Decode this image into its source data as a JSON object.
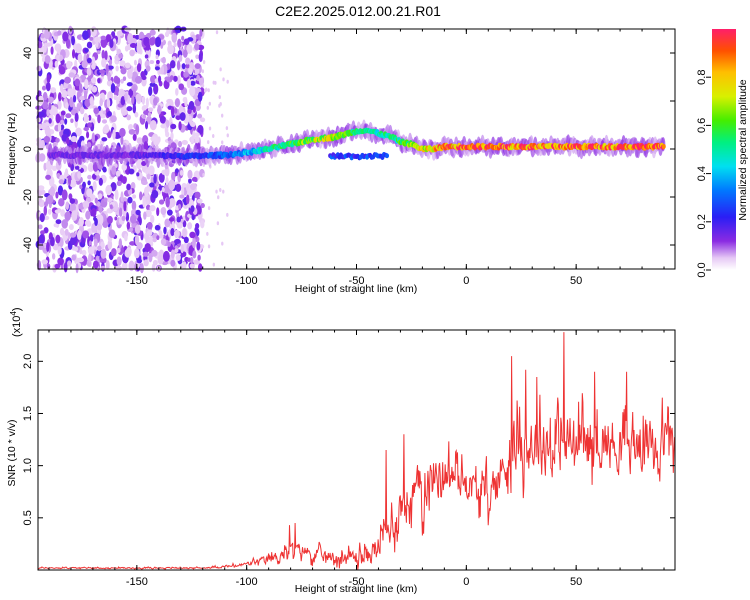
{
  "title": "C2E2.2025.012.00.21.R01",
  "chart_data": [
    {
      "type": "heatmap",
      "xlabel": "Height of straight line (km)",
      "ylabel": "Frequency (Hz)",
      "xlim": [
        -195,
        95
      ],
      "ylim": [
        -50,
        50
      ],
      "xticks": [
        -150,
        -100,
        -50,
        0,
        50
      ],
      "yticks": [
        -40,
        -20,
        0,
        20,
        40
      ],
      "colorbar": {
        "label": "Normalized spectral amplitude",
        "range": [
          0.0,
          1.0
        ],
        "ticks": [
          "0.0",
          "0.2",
          "0.4",
          "0.6",
          "0.8"
        ],
        "colormap": "rainbow (white→purple→blue→cyan→green→yellow→orange→red)"
      },
      "ridge": {
        "x": [
          -190,
          -150,
          -125,
          -110,
          -100,
          -90,
          -80,
          -70,
          -60,
          -52,
          -46,
          -42,
          -38,
          -34,
          -30,
          -25,
          -20,
          -15,
          -10,
          0,
          20,
          50,
          90
        ],
        "y": [
          -2.5,
          -2.5,
          -3,
          -2.5,
          -1.5,
          0,
          2,
          4,
          5,
          7,
          8,
          7,
          6,
          5,
          3,
          2,
          0,
          0,
          1,
          1,
          1,
          1,
          1
        ],
        "amplitude": [
          0.15,
          0.15,
          0.25,
          0.3,
          0.4,
          0.5,
          0.6,
          0.7,
          0.75,
          0.55,
          0.5,
          0.5,
          0.55,
          0.5,
          0.6,
          0.7,
          0.75,
          0.8,
          0.9,
          0.95,
          0.95,
          0.95,
          0.95
        ]
      },
      "noise_region_x": [
        -195,
        -120
      ],
      "secondary_feature": {
        "x": [
          -62,
          -36
        ],
        "y": [
          -3,
          -3
        ],
        "amplitude": 0.25
      }
    },
    {
      "type": "line",
      "xlabel": "Height of straight line (km)",
      "ylabel": "SNR (10 * v/v)",
      "y_multiplier": "(x10^4)",
      "xlim": [
        -195,
        95
      ],
      "ylim": [
        0,
        2.3
      ],
      "xticks": [
        -150,
        -100,
        -50,
        0,
        50
      ],
      "yticks": [
        "0.5",
        "1.0",
        "1.5",
        "2.0"
      ],
      "color": "#ee3333",
      "envelope": {
        "x": [
          -195,
          -120,
          -105,
          -100,
          -90,
          -80,
          -75,
          -70,
          -60,
          -55,
          -50,
          -45,
          -40,
          -35,
          -30,
          -25,
          -20,
          -15,
          -10,
          -5,
          0,
          5,
          10,
          15,
          20,
          25,
          30,
          40,
          50,
          60,
          70,
          80,
          90,
          95
        ],
        "y": [
          0.02,
          0.02,
          0.04,
          0.06,
          0.1,
          0.18,
          0.2,
          0.15,
          0.12,
          0.12,
          0.12,
          0.13,
          0.25,
          0.4,
          0.6,
          0.7,
          0.8,
          0.9,
          0.95,
          0.9,
          0.85,
          0.75,
          0.7,
          0.9,
          1.15,
          1.2,
          1.2,
          1.2,
          1.2,
          1.25,
          1.2,
          1.2,
          1.25,
          1.3
        ]
      },
      "spread": {
        "x": [
          -195,
          -120,
          -100,
          -80,
          -60,
          -40,
          -30,
          -20,
          -10,
          0,
          10,
          20,
          40,
          60,
          95
        ],
        "y": [
          0.01,
          0.01,
          0.03,
          0.12,
          0.1,
          0.2,
          0.35,
          0.4,
          0.35,
          0.25,
          0.3,
          0.45,
          0.5,
          0.45,
          0.4
        ]
      },
      "annotated_peaks": [
        {
          "x": 44.5,
          "y": 2.28
        },
        {
          "x": 20.5,
          "y": 2.05
        },
        {
          "x": 27,
          "y": 1.92
        },
        {
          "x": 32,
          "y": 1.85
        },
        {
          "x": 58.5,
          "y": 1.9
        },
        {
          "x": 73,
          "y": 1.9
        },
        {
          "x": -28.5,
          "y": 1.3
        },
        {
          "x": -36.5,
          "y": 1.15
        },
        {
          "x": -78,
          "y": 0.45
        },
        {
          "x": -80.5,
          "y": 0.43
        }
      ]
    }
  ]
}
